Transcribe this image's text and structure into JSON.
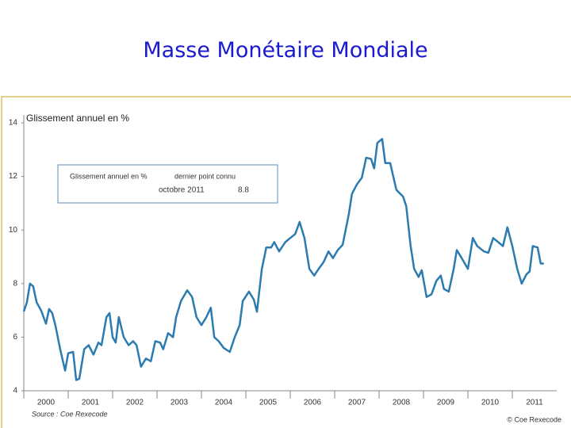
{
  "slide_title": "Masse Monétaire Mondiale",
  "chart_data": {
    "type": "line",
    "title": "Glissement annuel en %",
    "inset": {
      "label": "Glissement annuel en %",
      "header": "dernier point connu",
      "date": "octobre 2011",
      "value": 8.8
    },
    "source": "Source : Coe Rexecode",
    "credit": "© Coe Rexecode",
    "color": "#2b7bb0",
    "x": [
      2000.0,
      2000.07,
      2000.14,
      2000.21,
      2000.29,
      2000.39,
      2000.5,
      2000.57,
      2000.64,
      2000.71,
      2000.82,
      2000.93,
      2001.0,
      2001.11,
      2001.18,
      2001.25,
      2001.36,
      2001.46,
      2001.57,
      2001.68,
      2001.75,
      2001.86,
      2001.93,
      2002.0,
      2002.07,
      2002.14,
      2002.25,
      2002.36,
      2002.46,
      2002.54,
      2002.64,
      2002.75,
      2002.86,
      2002.96,
      2003.07,
      2003.14,
      2003.25,
      2003.36,
      2003.43,
      2003.54,
      2003.68,
      2003.79,
      2003.89,
      2004.0,
      2004.11,
      2004.21,
      2004.29,
      2004.39,
      2004.5,
      2004.64,
      2004.75,
      2004.86,
      2004.93,
      2005.07,
      2005.18,
      2005.25,
      2005.36,
      2005.46,
      2005.57,
      2005.64,
      2005.75,
      2005.89,
      2006.0,
      2006.11,
      2006.21,
      2006.32,
      2006.43,
      2006.54,
      2006.64,
      2006.75,
      2006.86,
      2006.96,
      2007.07,
      2007.18,
      2007.32,
      2007.39,
      2007.5,
      2007.61,
      2007.71,
      2007.82,
      2007.89,
      2007.96,
      2008.07,
      2008.14,
      2008.25,
      2008.39,
      2008.54,
      2008.61,
      2008.71,
      2008.79,
      2008.89,
      2008.96,
      2009.07,
      2009.18,
      2009.29,
      2009.39,
      2009.46,
      2009.57,
      2009.68,
      2009.75,
      2009.86,
      2010.0,
      2010.11,
      2010.21,
      2010.36,
      2010.46,
      2010.57,
      2010.68,
      2010.79,
      2010.89,
      2011.0,
      2011.11,
      2011.21,
      2011.32,
      2011.39,
      2011.46,
      2011.57,
      2011.64,
      2011.71
    ],
    "values": [
      6.96,
      7.3,
      8.0,
      7.9,
      7.3,
      7.0,
      6.5,
      7.05,
      6.9,
      6.45,
      5.55,
      4.75,
      5.4,
      5.45,
      4.4,
      4.45,
      5.55,
      5.7,
      5.35,
      5.8,
      5.7,
      6.75,
      6.9,
      6.0,
      5.8,
      6.75,
      6.0,
      5.7,
      5.85,
      5.7,
      4.9,
      5.2,
      5.1,
      5.85,
      5.8,
      5.55,
      6.15,
      6.0,
      6.75,
      7.35,
      7.75,
      7.5,
      6.75,
      6.45,
      6.75,
      7.1,
      6.0,
      5.85,
      5.6,
      5.45,
      6.0,
      6.45,
      7.35,
      7.7,
      7.4,
      6.95,
      8.55,
      9.35,
      9.35,
      9.55,
      9.2,
      9.55,
      9.7,
      9.85,
      10.3,
      9.7,
      8.55,
      8.3,
      8.55,
      8.8,
      9.2,
      8.95,
      9.25,
      9.45,
      10.6,
      11.35,
      11.7,
      11.95,
      12.7,
      12.65,
      12.3,
      13.25,
      13.4,
      12.5,
      12.5,
      11.5,
      11.25,
      10.9,
      9.4,
      8.55,
      8.25,
      8.5,
      7.5,
      7.6,
      8.1,
      8.3,
      7.8,
      7.7,
      8.55,
      9.25,
      8.95,
      8.55,
      9.7,
      9.4,
      9.2,
      9.15,
      9.7,
      9.55,
      9.4,
      10.1,
      9.4,
      8.55,
      8.0,
      8.35,
      8.45,
      9.4,
      9.35,
      8.75,
      8.75
    ],
    "xlim": [
      2000,
      2012
    ],
    "xticks": [
      2000,
      2001,
      2002,
      2003,
      2004,
      2005,
      2006,
      2007,
      2008,
      2009,
      2010,
      2011
    ],
    "ylim": [
      4,
      14
    ],
    "yticks": [
      4,
      6,
      8,
      10,
      12,
      14
    ]
  }
}
